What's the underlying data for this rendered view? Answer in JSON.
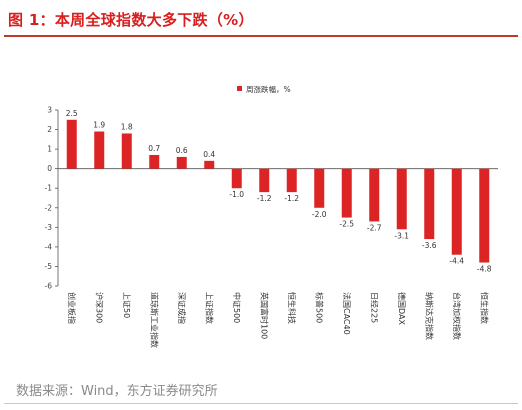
{
  "header": {
    "title": "图 1：本周全球指数大多下跌（%）"
  },
  "footer": {
    "source": "数据来源：Wind，东方证券研究所"
  },
  "colors": {
    "bar": "#dc2424",
    "title": "#d81e1e",
    "axis": "#555555"
  },
  "chart_data": {
    "type": "bar",
    "title": "",
    "xlabel": "",
    "ylabel": "",
    "legend": {
      "label": "周涨跌幅，%",
      "position": "top-center"
    },
    "ylim": [
      -6,
      3
    ],
    "yticks": [
      3,
      2,
      1,
      0,
      -1,
      -2,
      -3,
      -4,
      -5,
      -6
    ],
    "grid": false,
    "categories": [
      "创业板指",
      "沪深300",
      "上证50",
      "道琼斯工业指数",
      "深证成指",
      "上证指数",
      "中证500",
      "英国富时100",
      "恒生科技",
      "标普500",
      "法国CAC40",
      "日经225",
      "德国DAX",
      "纳斯达克指数",
      "台湾加权指数",
      "恒生指数"
    ],
    "series": [
      {
        "name": "周涨跌幅，%",
        "values": [
          2.5,
          1.9,
          1.8,
          0.7,
          0.6,
          0.4,
          -1.0,
          -1.2,
          -1.2,
          -2.0,
          -2.5,
          -2.7,
          -3.1,
          -3.6,
          -4.4,
          -4.8
        ],
        "labels": [
          "2.5",
          "1.9",
          "1.8",
          "0.7",
          "0.6",
          "0.4",
          "-1.0",
          "-1.2",
          "-1.2",
          "-2.0",
          "-2.5",
          "-2.7",
          "-3.1",
          "-3.6",
          "-4.4",
          "-4.8"
        ]
      }
    ]
  }
}
